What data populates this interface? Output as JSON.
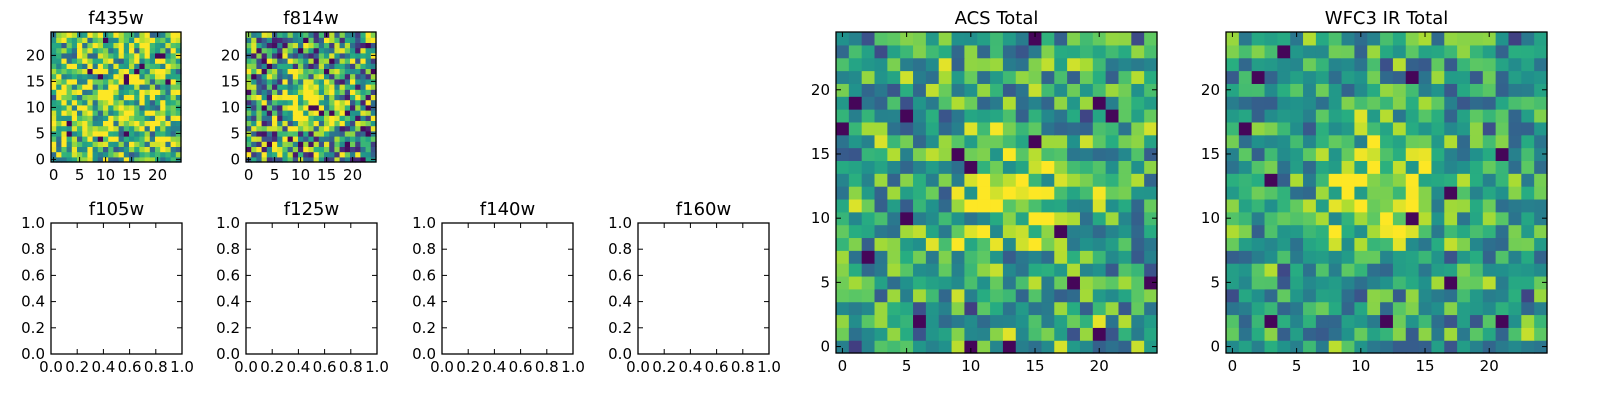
{
  "chart_data": [
    {
      "type": "heatmap",
      "title": "f435w",
      "xlim": [
        -0.5,
        24.5
      ],
      "ylim": [
        -0.5,
        24.5
      ],
      "xticks": [
        0,
        5,
        10,
        15,
        20
      ],
      "yticks": [
        0,
        5,
        10,
        15,
        20
      ],
      "grid_size": 25,
      "colormap": "viridis",
      "peak": {
        "x": 12,
        "y": 12,
        "amplitude": 0.1,
        "sigma": 5
      },
      "noise": {
        "mean": 0.72,
        "spread": 0.42,
        "seed": 11
      }
    },
    {
      "type": "heatmap",
      "title": "f814w",
      "xlim": [
        -0.5,
        24.5
      ],
      "ylim": [
        -0.5,
        24.5
      ],
      "xticks": [
        0,
        5,
        10,
        15,
        20
      ],
      "yticks": [
        0,
        5,
        10,
        15,
        20
      ],
      "grid_size": 25,
      "colormap": "viridis",
      "peak": {
        "x": 12,
        "y": 11,
        "amplitude": 0.42,
        "sigma": 3.5
      },
      "noise": {
        "mean": 0.55,
        "spread": 0.5,
        "seed": 23
      }
    },
    {
      "type": "empty",
      "title": "f105w",
      "xlim": [
        0,
        1
      ],
      "ylim": [
        0,
        1
      ],
      "xticks": [
        "0.0",
        "0.2",
        "0.4",
        "0.6",
        "0.8",
        "1.0"
      ],
      "yticks": [
        "0.0",
        "0.2",
        "0.4",
        "0.6",
        "0.8",
        "1.0"
      ]
    },
    {
      "type": "empty",
      "title": "f125w",
      "xlim": [
        0,
        1
      ],
      "ylim": [
        0,
        1
      ],
      "xticks": [
        "0.0",
        "0.2",
        "0.4",
        "0.6",
        "0.8",
        "1.0"
      ],
      "yticks": [
        "0.0",
        "0.2",
        "0.4",
        "0.6",
        "0.8",
        "1.0"
      ]
    },
    {
      "type": "empty",
      "title": "f140w",
      "xlim": [
        0,
        1
      ],
      "ylim": [
        0,
        1
      ],
      "xticks": [
        "0.0",
        "0.2",
        "0.4",
        "0.6",
        "0.8",
        "1.0"
      ],
      "yticks": [
        "0.0",
        "0.2",
        "0.4",
        "0.6",
        "0.8",
        "1.0"
      ]
    },
    {
      "type": "empty",
      "title": "f160w",
      "xlim": [
        0,
        1
      ],
      "ylim": [
        0,
        1
      ],
      "xticks": [
        "0.0",
        "0.2",
        "0.4",
        "0.6",
        "0.8",
        "1.0"
      ],
      "yticks": [
        "0.0",
        "0.2",
        "0.4",
        "0.6",
        "0.8",
        "1.0"
      ]
    },
    {
      "type": "heatmap",
      "title": "ACS Total",
      "xlim": [
        -0.5,
        24.5
      ],
      "ylim": [
        -0.5,
        24.5
      ],
      "xticks": [
        0,
        5,
        10,
        15,
        20
      ],
      "yticks": [
        0,
        5,
        10,
        15,
        20
      ],
      "grid_size": 25,
      "colormap": "viridis",
      "peak": {
        "x": 13,
        "y": 12,
        "amplitude": 0.3,
        "sigma": 3.2
      },
      "noise": {
        "mean": 0.58,
        "spread": 0.34,
        "seed": 37
      }
    },
    {
      "type": "heatmap",
      "title": "WFC3 IR Total",
      "xlim": [
        -0.5,
        24.5
      ],
      "ylim": [
        -0.5,
        24.5
      ],
      "xticks": [
        0,
        5,
        10,
        15,
        20
      ],
      "yticks": [
        0,
        5,
        10,
        15,
        20
      ],
      "grid_size": 25,
      "colormap": "viridis",
      "peak": {
        "x": 12,
        "y": 12,
        "amplitude": 0.36,
        "sigma": 3.4
      },
      "noise": {
        "mean": 0.56,
        "spread": 0.3,
        "seed": 51
      }
    }
  ]
}
